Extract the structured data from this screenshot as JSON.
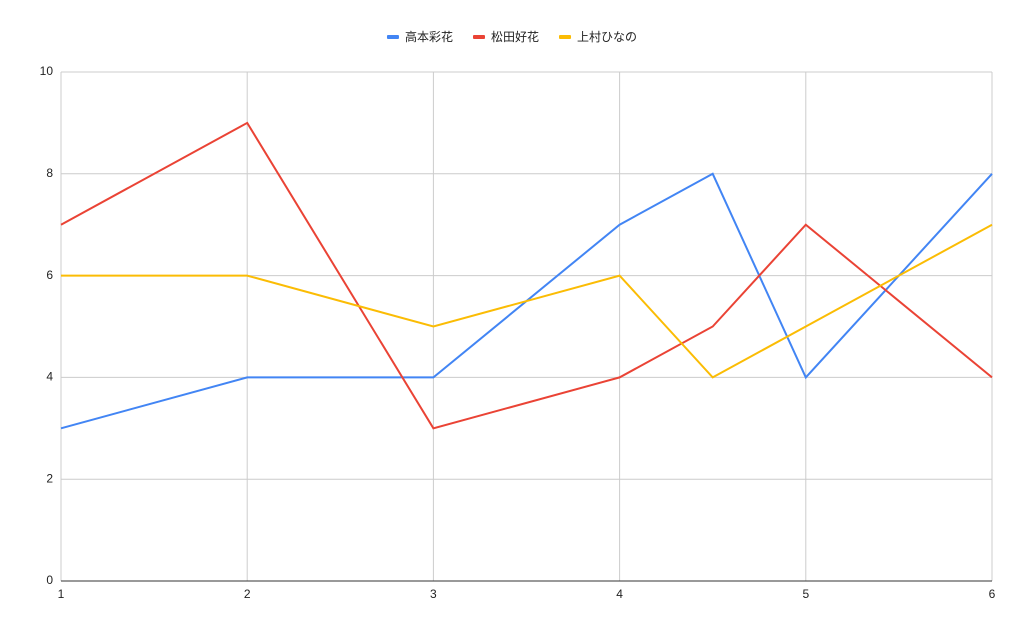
{
  "chart_data": {
    "type": "line",
    "x": [
      1,
      2,
      3,
      4,
      4.5,
      5,
      6
    ],
    "series": [
      {
        "name": "高本彩花",
        "color": "#4285f4",
        "values": [
          3,
          4,
          4,
          7,
          8,
          4,
          8
        ]
      },
      {
        "name": "松田好花",
        "color": "#ea4335",
        "values": [
          7,
          9,
          3,
          4,
          5,
          7,
          4
        ]
      },
      {
        "name": "上村ひなの",
        "color": "#fbbc04",
        "values": [
          6,
          6,
          5,
          6,
          4,
          5,
          7
        ]
      }
    ],
    "xlim": [
      1,
      6
    ],
    "xticks": [
      1,
      2,
      3,
      4,
      5,
      6
    ],
    "ylim": [
      0,
      10
    ],
    "yticks": [
      0,
      2,
      4,
      6,
      8,
      10
    ],
    "grid": true,
    "legend": "top"
  }
}
